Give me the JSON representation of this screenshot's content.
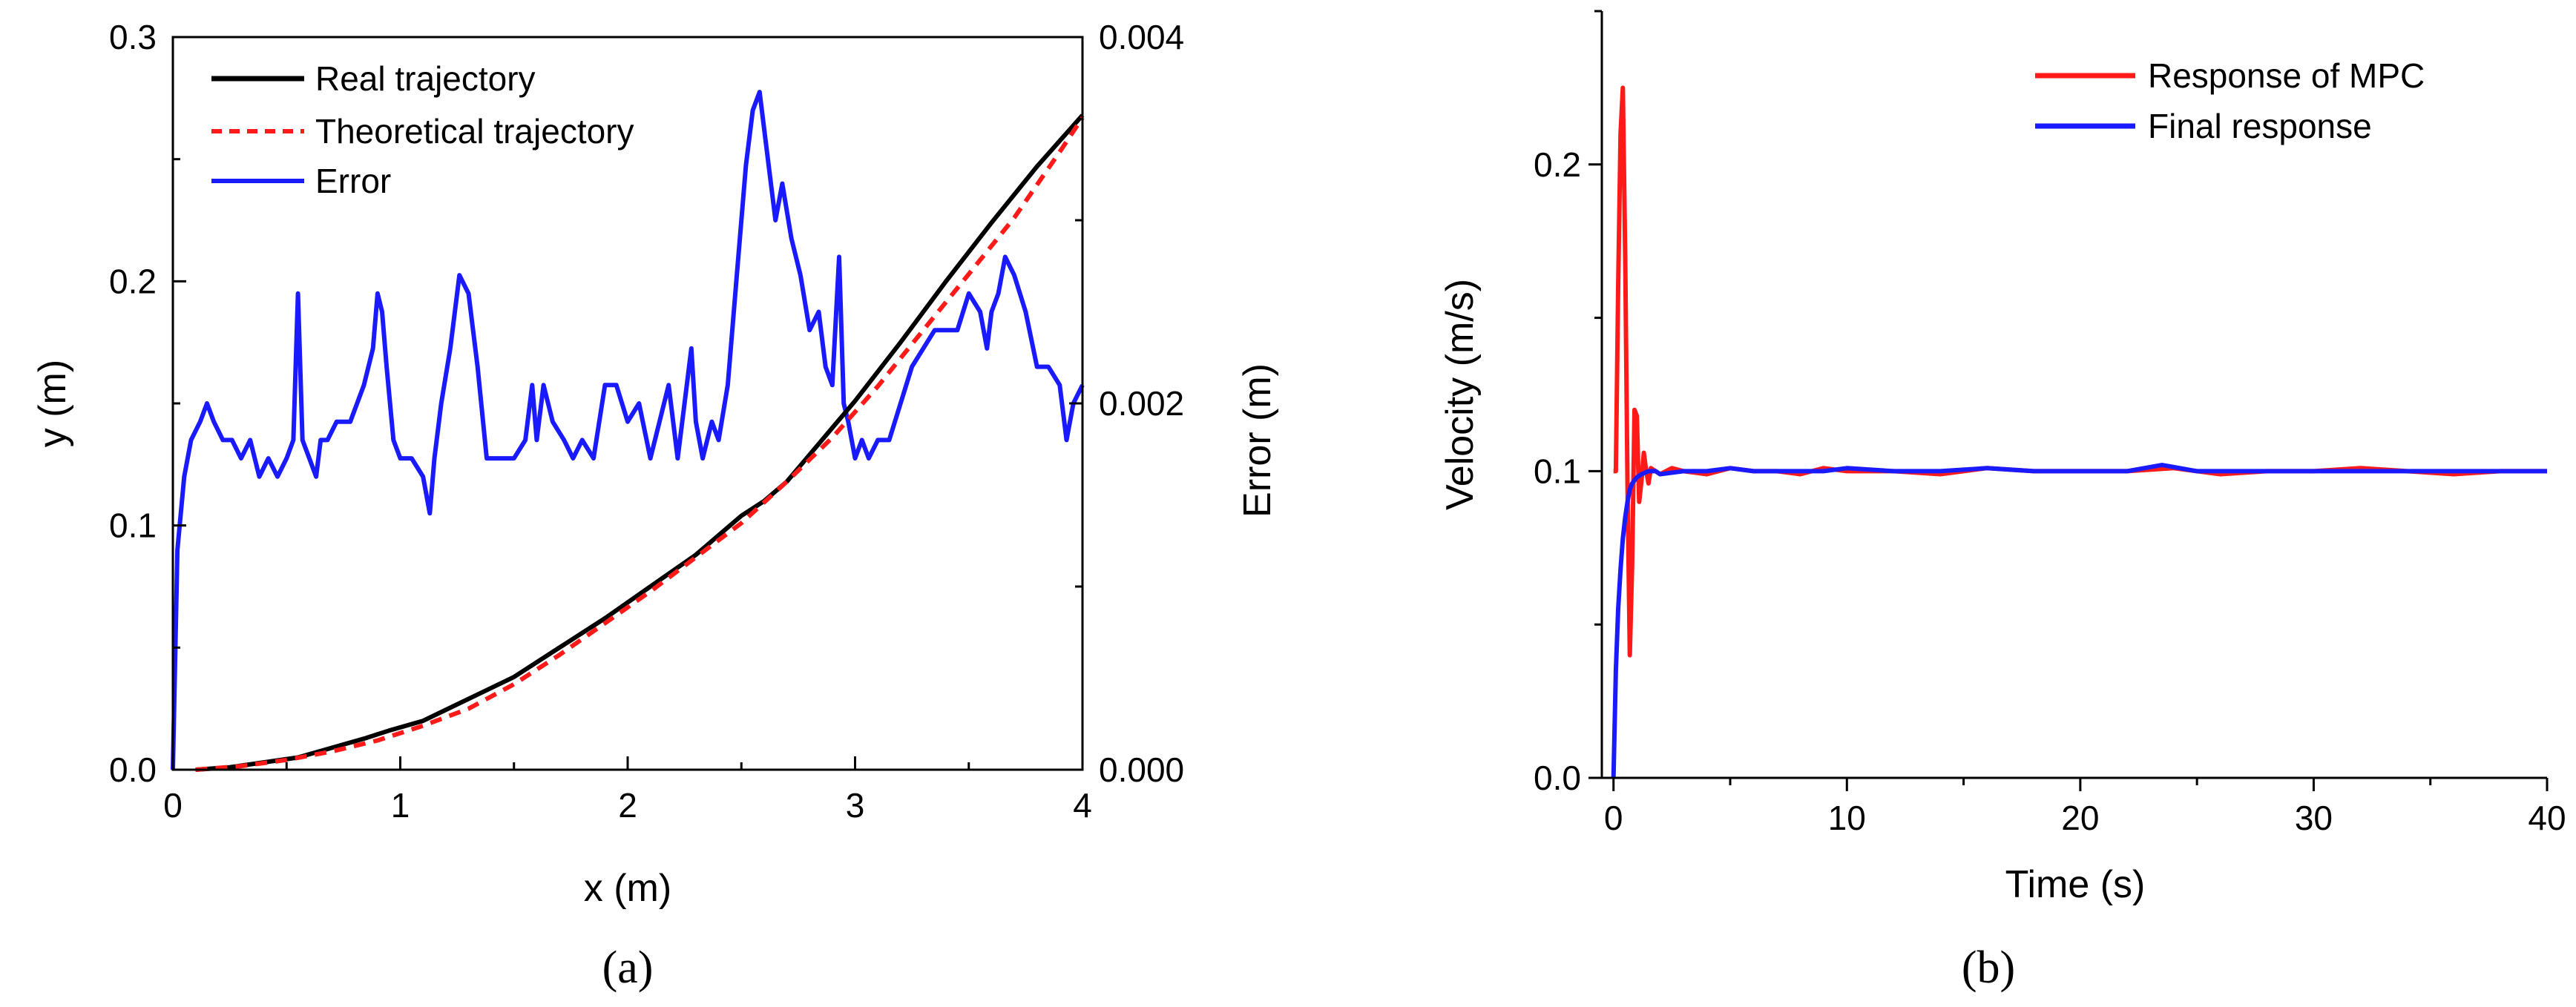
{
  "chart_data": [
    {
      "panel_label": "(a)",
      "type": "line",
      "xlabel": "x (m)",
      "ylabel": "y (m)",
      "y2label": "Error (m)",
      "xlim": [
        0,
        4
      ],
      "ylim": [
        0,
        0.3
      ],
      "y2lim": [
        0,
        0.004
      ],
      "x_ticks": [
        "0",
        "1",
        "2",
        "3",
        "4"
      ],
      "y_ticks": [
        "0.0",
        "0.1",
        "0.2",
        "0.3"
      ],
      "y2_ticks": [
        "0.000",
        "0.002",
        "0.004"
      ],
      "legend_position": "top-left",
      "series": [
        {
          "name": "Real trajectory",
          "axis": "left",
          "color": "#000000",
          "dash": "solid",
          "x": [
            0.1,
            0.25,
            0.4,
            0.55,
            0.7,
            0.85,
            0.95,
            1.1,
            1.3,
            1.5,
            1.7,
            1.9,
            2.1,
            2.3,
            2.5,
            2.6,
            2.7,
            2.8,
            2.9,
            3.0,
            3.2,
            3.4,
            3.6,
            3.8,
            4.0
          ],
          "y": [
            0.0,
            0.001,
            0.003,
            0.005,
            0.009,
            0.013,
            0.016,
            0.02,
            0.029,
            0.038,
            0.05,
            0.062,
            0.075,
            0.088,
            0.104,
            0.11,
            0.118,
            0.129,
            0.14,
            0.151,
            0.175,
            0.2,
            0.224,
            0.247,
            0.268
          ]
        },
        {
          "name": "Theoretical trajectory",
          "axis": "left",
          "color": "#ff1a1a",
          "dash": "dashed",
          "x": [
            0.1,
            0.3,
            0.5,
            0.7,
            0.9,
            1.1,
            1.3,
            1.5,
            1.7,
            1.9,
            2.1,
            2.3,
            2.5,
            2.7,
            2.9,
            3.1,
            3.3,
            3.5,
            3.7,
            3.9,
            4.0
          ],
          "y": [
            0.0,
            0.0015,
            0.004,
            0.0075,
            0.012,
            0.018,
            0.025,
            0.035,
            0.047,
            0.06,
            0.073,
            0.087,
            0.101,
            0.118,
            0.136,
            0.157,
            0.18,
            0.203,
            0.226,
            0.253,
            0.267
          ]
        },
        {
          "name": "Error",
          "axis": "right",
          "color": "#1a1aff",
          "dash": "solid",
          "x": [
            0.0,
            0.02,
            0.05,
            0.08,
            0.12,
            0.15,
            0.18,
            0.22,
            0.26,
            0.3,
            0.34,
            0.38,
            0.42,
            0.46,
            0.5,
            0.53,
            0.55,
            0.57,
            0.6,
            0.63,
            0.65,
            0.68,
            0.72,
            0.78,
            0.84,
            0.88,
            0.9,
            0.92,
            0.94,
            0.97,
            1.0,
            1.05,
            1.1,
            1.13,
            1.15,
            1.18,
            1.22,
            1.26,
            1.3,
            1.34,
            1.38,
            1.42,
            1.46,
            1.5,
            1.55,
            1.58,
            1.6,
            1.63,
            1.67,
            1.72,
            1.76,
            1.8,
            1.85,
            1.9,
            1.95,
            2.0,
            2.05,
            2.1,
            2.14,
            2.18,
            2.22,
            2.26,
            2.28,
            2.3,
            2.33,
            2.37,
            2.4,
            2.44,
            2.48,
            2.52,
            2.55,
            2.58,
            2.6,
            2.62,
            2.65,
            2.68,
            2.72,
            2.76,
            2.8,
            2.84,
            2.87,
            2.9,
            2.93,
            2.95,
            2.97,
            3.0,
            3.03,
            3.06,
            3.1,
            3.15,
            3.2,
            3.25,
            3.3,
            3.35,
            3.4,
            3.45,
            3.5,
            3.55,
            3.58,
            3.6,
            3.63,
            3.66,
            3.7,
            3.75,
            3.8,
            3.85,
            3.9,
            3.93,
            3.96,
            4.0
          ],
          "y": [
            0.0,
            0.0012,
            0.0016,
            0.0018,
            0.0019,
            0.002,
            0.0019,
            0.0018,
            0.0018,
            0.0017,
            0.0018,
            0.0016,
            0.0017,
            0.0016,
            0.0017,
            0.0018,
            0.0026,
            0.0018,
            0.0017,
            0.0016,
            0.0018,
            0.0018,
            0.0019,
            0.0019,
            0.0021,
            0.0023,
            0.0026,
            0.0025,
            0.0022,
            0.0018,
            0.0017,
            0.0017,
            0.0016,
            0.0014,
            0.0017,
            0.002,
            0.0023,
            0.0027,
            0.0026,
            0.0022,
            0.0017,
            0.0017,
            0.0017,
            0.0017,
            0.0018,
            0.0021,
            0.0018,
            0.0021,
            0.0019,
            0.0018,
            0.0017,
            0.0018,
            0.0017,
            0.0021,
            0.0021,
            0.0019,
            0.002,
            0.0017,
            0.0019,
            0.0021,
            0.0017,
            0.0021,
            0.0023,
            0.0019,
            0.0017,
            0.0019,
            0.0018,
            0.0021,
            0.0027,
            0.0033,
            0.0036,
            0.0037,
            0.0035,
            0.0033,
            0.003,
            0.0032,
            0.0029,
            0.0027,
            0.0024,
            0.0025,
            0.0022,
            0.0021,
            0.0028,
            0.002,
            0.0019,
            0.0017,
            0.0018,
            0.0017,
            0.0018,
            0.0018,
            0.002,
            0.0022,
            0.0023,
            0.0024,
            0.0024,
            0.0024,
            0.0026,
            0.0025,
            0.0023,
            0.0025,
            0.0026,
            0.0028,
            0.0027,
            0.0025,
            0.0022,
            0.0022,
            0.0021,
            0.0018,
            0.002,
            0.0021
          ]
        }
      ]
    },
    {
      "panel_label": "(b)",
      "type": "line",
      "xlabel": "Time (s)",
      "ylabel": "Velocity (m/s)",
      "xlim": [
        -0.5,
        40
      ],
      "ylim": [
        0,
        0.25
      ],
      "x_ticks": [
        "0",
        "10",
        "20",
        "30",
        "40"
      ],
      "y_ticks": [
        "0.0",
        "0.1",
        "0.2"
      ],
      "legend_position": "top-right",
      "series": [
        {
          "name": "Response of MPC",
          "color": "#ff1a1a",
          "x": [
            0.0,
            0.1,
            0.2,
            0.3,
            0.4,
            0.5,
            0.6,
            0.7,
            0.8,
            0.9,
            1.0,
            1.1,
            1.2,
            1.3,
            1.4,
            1.5,
            1.6,
            1.8,
            2.0,
            2.5,
            3,
            4,
            5,
            6,
            7,
            8,
            9,
            10,
            12,
            14,
            16,
            18,
            20,
            22,
            24,
            26,
            28,
            30,
            32,
            34,
            36,
            38,
            40
          ],
          "y": [
            0.1,
            0.1,
            0.16,
            0.21,
            0.225,
            0.17,
            0.095,
            0.04,
            0.07,
            0.12,
            0.118,
            0.09,
            0.097,
            0.106,
            0.1,
            0.096,
            0.101,
            0.1,
            0.099,
            0.101,
            0.1,
            0.099,
            0.101,
            0.1,
            0.1,
            0.099,
            0.101,
            0.1,
            0.1,
            0.099,
            0.101,
            0.1,
            0.1,
            0.1,
            0.101,
            0.099,
            0.1,
            0.1,
            0.101,
            0.1,
            0.099,
            0.1,
            0.1
          ]
        },
        {
          "name": "Final response",
          "color": "#1a1aff",
          "x": [
            0.0,
            0.1,
            0.2,
            0.3,
            0.4,
            0.5,
            0.6,
            0.7,
            0.8,
            0.9,
            1.0,
            1.2,
            1.5,
            1.8,
            2.0,
            3,
            4,
            5,
            6,
            7,
            8,
            9,
            10,
            12,
            14,
            16,
            18,
            20,
            22,
            23.5,
            25,
            27,
            29,
            31,
            33,
            35,
            37,
            39,
            40
          ],
          "y": [
            0.0,
            0.035,
            0.055,
            0.068,
            0.078,
            0.085,
            0.09,
            0.094,
            0.096,
            0.097,
            0.098,
            0.099,
            0.1,
            0.1,
            0.099,
            0.1,
            0.1,
            0.101,
            0.1,
            0.1,
            0.1,
            0.1,
            0.101,
            0.1,
            0.1,
            0.101,
            0.1,
            0.1,
            0.1,
            0.102,
            0.1,
            0.1,
            0.1,
            0.1,
            0.1,
            0.1,
            0.1,
            0.1,
            0.1
          ]
        }
      ]
    }
  ]
}
